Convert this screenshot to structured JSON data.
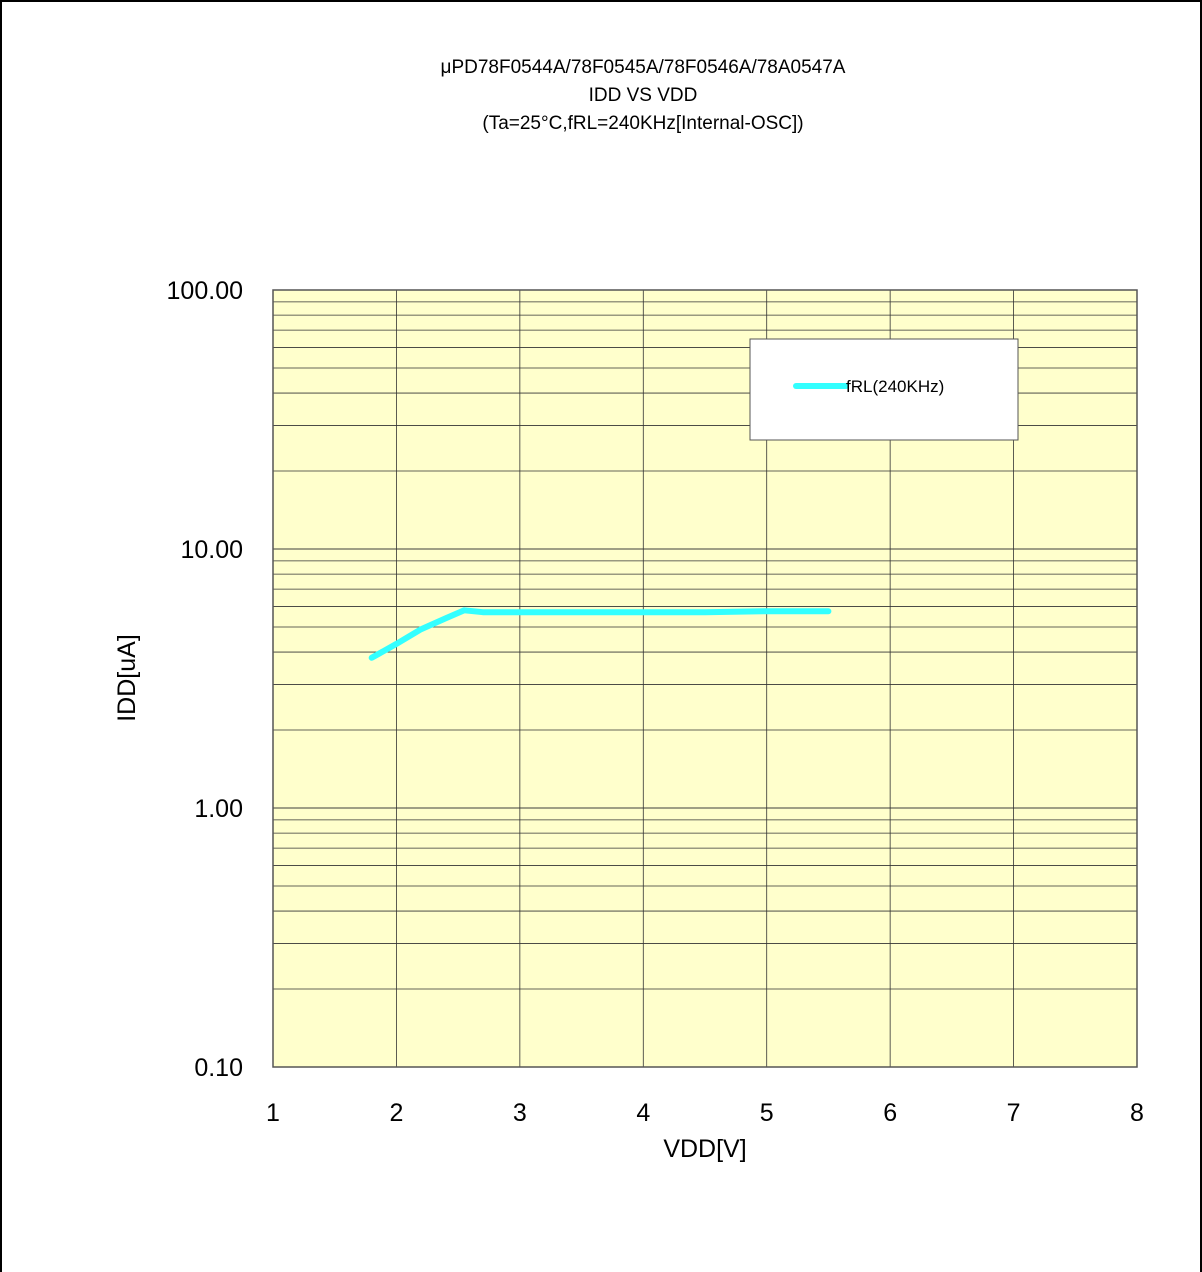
{
  "chart_data": {
    "type": "line",
    "title_lines": [
      "μPD78F0544A/78F0545A/78F0546A/78A0547A",
      "IDD VS VDD",
      "(Ta=25°C,fRL=240KHz[Internal-OSC])"
    ],
    "xlabel": "VDD[V]",
    "ylabel": "IDD[uA]",
    "x_scale": "linear",
    "y_scale": "log",
    "xlim": [
      1,
      8
    ],
    "ylim": [
      0.1,
      100
    ],
    "x_ticks": [
      "1",
      "2",
      "3",
      "4",
      "5",
      "6",
      "7",
      "8"
    ],
    "y_ticks": [
      "0.10",
      "1.00",
      "10.00",
      "100.00"
    ],
    "grid": true,
    "legend_position": "top-right",
    "plot_background": "#ffffcc",
    "series": [
      {
        "name": "fRL(240KHz)",
        "color": "#33ffff",
        "x": [
          1.8,
          2.0,
          2.2,
          2.4,
          2.55,
          2.7,
          3.0,
          3.5,
          4.0,
          4.5,
          5.0,
          5.5
        ],
        "y": [
          3.8,
          4.3,
          4.9,
          5.4,
          5.8,
          5.7,
          5.7,
          5.7,
          5.7,
          5.7,
          5.75,
          5.75
        ]
      }
    ]
  }
}
